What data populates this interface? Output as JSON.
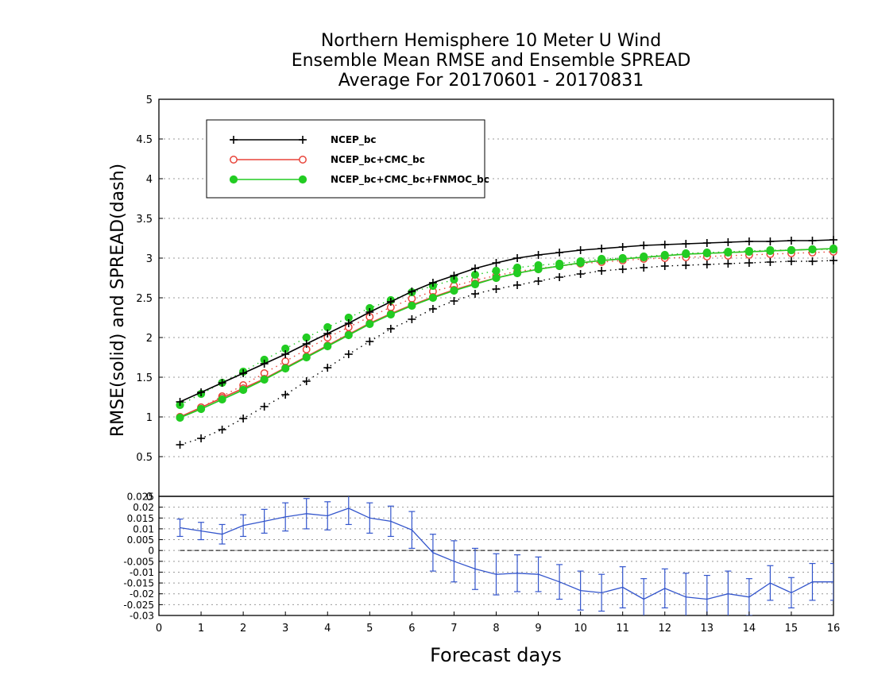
{
  "chart_data": [
    {
      "type": "line",
      "title": [
        "Northern Hemisphere 10 Meter U Wind",
        "Ensemble Mean RMSE and Ensemble SPREAD",
        "Average For 20170601 - 20170831"
      ],
      "ylabel": "RMSE(solid)  and  SPREAD(dash)",
      "xlabel": "Forecast days",
      "xlim": [
        0,
        16
      ],
      "ylim": [
        0,
        5
      ],
      "yticks": [
        "0.5",
        "1",
        "1.5",
        "2",
        "2.5",
        "3",
        "3.5",
        "4",
        "4.5",
        "5"
      ],
      "grid": true,
      "legend_position": "top-left",
      "x": [
        0.5,
        1,
        1.5,
        2,
        2.5,
        3,
        3.5,
        4,
        4.5,
        5,
        5.5,
        6,
        6.5,
        7,
        7.5,
        8,
        8.5,
        9,
        9.5,
        10,
        10.5,
        11,
        11.5,
        12,
        12.5,
        13,
        13.5,
        14,
        14.5,
        15,
        15.5,
        16
      ],
      "series": [
        {
          "name": "NCEP_bc",
          "style": "solid",
          "marker": "plus",
          "color": "#000000",
          "values": [
            1.19,
            1.31,
            1.43,
            1.55,
            1.67,
            1.79,
            1.92,
            2.05,
            2.18,
            2.32,
            2.45,
            2.58,
            2.69,
            2.78,
            2.87,
            2.94,
            3.0,
            3.04,
            3.07,
            3.1,
            3.12,
            3.14,
            3.16,
            3.17,
            3.18,
            3.19,
            3.2,
            3.21,
            3.21,
            3.22,
            3.22,
            3.23
          ]
        },
        {
          "name": "NCEP_bc+CMC_bc",
          "style": "solid",
          "marker": "open-circle",
          "color": "#e8443a",
          "values": [
            1.0,
            1.12,
            1.24,
            1.36,
            1.48,
            1.62,
            1.76,
            1.9,
            2.04,
            2.18,
            2.3,
            2.41,
            2.51,
            2.6,
            2.68,
            2.75,
            2.81,
            2.86,
            2.9,
            2.94,
            2.97,
            2.99,
            3.01,
            3.03,
            3.05,
            3.06,
            3.07,
            3.08,
            3.09,
            3.1,
            3.11,
            3.12
          ]
        },
        {
          "name": "NCEP_bc+CMC_bc+FNMOC_bc",
          "style": "solid",
          "marker": "filled-circle",
          "color": "#22cc22",
          "values": [
            0.99,
            1.1,
            1.22,
            1.34,
            1.47,
            1.61,
            1.75,
            1.89,
            2.03,
            2.17,
            2.29,
            2.4,
            2.5,
            2.59,
            2.67,
            2.75,
            2.81,
            2.86,
            2.9,
            2.94,
            2.97,
            2.99,
            3.01,
            3.03,
            3.05,
            3.06,
            3.07,
            3.08,
            3.09,
            3.1,
            3.11,
            3.12
          ]
        },
        {
          "name": "",
          "style": "dotted",
          "marker": "plus",
          "color": "#000000",
          "values": [
            0.65,
            0.73,
            0.84,
            0.98,
            1.13,
            1.28,
            1.45,
            1.62,
            1.79,
            1.95,
            2.11,
            2.23,
            2.36,
            2.46,
            2.55,
            2.61,
            2.66,
            2.71,
            2.76,
            2.8,
            2.84,
            2.86,
            2.88,
            2.9,
            2.91,
            2.92,
            2.93,
            2.94,
            2.95,
            2.96,
            2.96,
            2.97
          ]
        },
        {
          "name": "",
          "style": "dotted",
          "marker": "open-circle",
          "color": "#e8443a",
          "values": [
            1.0,
            1.12,
            1.26,
            1.4,
            1.55,
            1.7,
            1.85,
            2.0,
            2.13,
            2.26,
            2.38,
            2.49,
            2.58,
            2.65,
            2.72,
            2.78,
            2.83,
            2.87,
            2.9,
            2.93,
            2.95,
            2.97,
            2.99,
            3.0,
            3.01,
            3.02,
            3.03,
            3.04,
            3.05,
            3.06,
            3.07,
            3.08
          ]
        },
        {
          "name": "",
          "style": "dotted",
          "marker": "filled-circle",
          "color": "#22cc22",
          "values": [
            1.15,
            1.29,
            1.43,
            1.57,
            1.72,
            1.86,
            2.0,
            2.13,
            2.25,
            2.37,
            2.47,
            2.57,
            2.65,
            2.73,
            2.79,
            2.84,
            2.88,
            2.91,
            2.93,
            2.96,
            2.99,
            3.0,
            3.02,
            3.04,
            3.06,
            3.07,
            3.08,
            3.09,
            3.1,
            3.1,
            3.11,
            3.11
          ]
        }
      ]
    },
    {
      "type": "line",
      "subtype": "errorbar",
      "xlabel": "Forecast days",
      "xlim": [
        0,
        16
      ],
      "ylim": [
        -0.03,
        0.025
      ],
      "xticks": [
        "0",
        "1",
        "2",
        "3",
        "4",
        "5",
        "6",
        "7",
        "8",
        "9",
        "10",
        "11",
        "12",
        "13",
        "14",
        "15",
        "16"
      ],
      "yticks": [
        "-0.03",
        "-0.025",
        "-0.02",
        "-0.015",
        "-0.01",
        "-0.005",
        "0",
        "0.005",
        "0.01",
        "0.015",
        "0.02",
        "0.025"
      ],
      "grid": true,
      "reference_line": 0,
      "color": "#3355cc",
      "x": [
        0.5,
        1,
        1.5,
        2,
        2.5,
        3,
        3.5,
        4,
        4.5,
        5,
        5.5,
        6,
        6.5,
        7,
        7.5,
        8,
        8.5,
        9,
        9.5,
        10,
        10.5,
        11,
        11.5,
        12,
        12.5,
        13,
        13.5,
        14,
        14.5,
        15,
        15.5,
        16
      ],
      "values": [
        0.0105,
        0.009,
        0.0075,
        0.0115,
        0.0135,
        0.0155,
        0.017,
        0.016,
        0.0195,
        0.015,
        0.0135,
        0.0095,
        -0.001,
        -0.005,
        -0.0085,
        -0.011,
        -0.0105,
        -0.011,
        -0.0145,
        -0.0185,
        -0.0195,
        -0.017,
        -0.0225,
        -0.0175,
        -0.0215,
        -0.0225,
        -0.02,
        -0.0215,
        -0.015,
        -0.0195,
        -0.0145,
        -0.0145
      ],
      "error": [
        0.004,
        0.004,
        0.0045,
        0.005,
        0.0055,
        0.0065,
        0.007,
        0.0065,
        0.0075,
        0.007,
        0.007,
        0.0085,
        0.0085,
        0.0095,
        0.0095,
        0.0095,
        0.0085,
        0.008,
        0.008,
        0.009,
        0.0085,
        0.0095,
        0.0095,
        0.009,
        0.011,
        0.011,
        0.0105,
        0.0085,
        0.008,
        0.007,
        0.0085,
        0.0085
      ]
    }
  ]
}
